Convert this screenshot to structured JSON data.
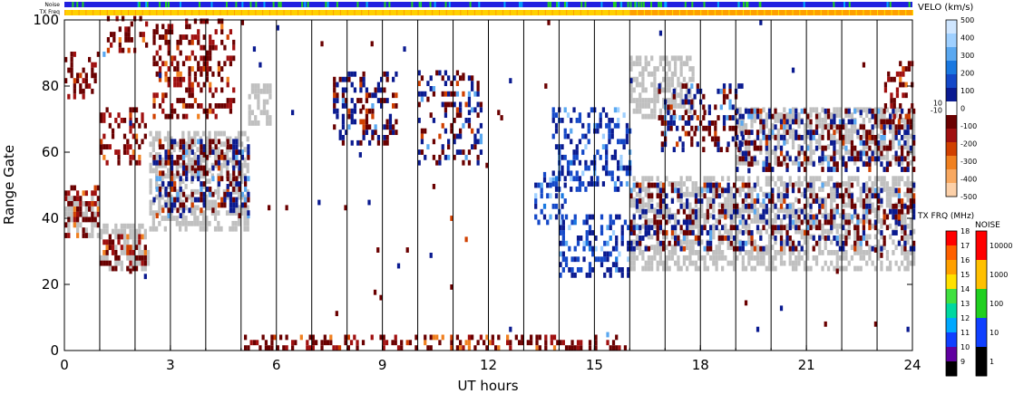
{
  "chart_data": {
    "type": "heatmap",
    "xlabel": "UT hours",
    "ylabel": "Range Gate",
    "xlim": [
      0,
      24
    ],
    "ylim": [
      0,
      100
    ],
    "x_ticks": [
      "0",
      "3",
      "6",
      "9",
      "12",
      "15",
      "18",
      "21",
      "24"
    ],
    "y_ticks": [
      "0",
      "20",
      "40",
      "60",
      "80",
      "100"
    ],
    "vertical_lines_ut": [
      1,
      2,
      3,
      4,
      5,
      6,
      7,
      8,
      9,
      10,
      11,
      12,
      13,
      14,
      15,
      16,
      17,
      18,
      19,
      20,
      21,
      22,
      23
    ],
    "bars": {
      "noise_label": "Noise",
      "txfreq_label": "TX Freq",
      "txfreq_change_ut": 16
    },
    "velocity_scale": {
      "title": "VELO (km/s)",
      "labels": [
        "500",
        "400",
        "300",
        "200",
        "100",
        "0",
        "-100",
        "-200",
        "-300",
        "-400",
        "-500"
      ],
      "side_labels": [
        "10",
        "-10"
      ],
      "colors_top_to_bottom": [
        "#cfe6ff",
        "#9fd0ff",
        "#5aa8f0",
        "#1a78e0",
        "#1448c8",
        "#0a1a90",
        "#ffffff",
        "#6a0000",
        "#a01010",
        "#d04000",
        "#f08020",
        "#f8a860",
        "#fcd0a8"
      ]
    },
    "txfreq_scale": {
      "title": "TX FRQ (MHz)",
      "labels": [
        "18",
        "17",
        "16",
        "15",
        "14",
        "13",
        "12",
        "11",
        "10",
        "9"
      ],
      "colors_top_to_bottom": [
        "#ff0000",
        "#ff6000",
        "#ffa000",
        "#ffe000",
        "#40e040",
        "#00d8a0",
        "#00a8ff",
        "#1040ff",
        "#6000a0",
        "#000000"
      ]
    },
    "noise_scale": {
      "title": "NOISE",
      "labels": [
        "10000",
        "1000",
        "100",
        "10",
        "1"
      ],
      "colors_top_to_bottom": [
        "#ff0000",
        "#ffc000",
        "#20d020",
        "#1040ff",
        "#000000"
      ]
    },
    "colors": {
      "ground_scatter": "#c0c0c0",
      "toward": "#0a1a90",
      "away": "#6a0000",
      "noise_bar": "#2020e0",
      "txfreq_early": "#ffd000",
      "txfreq_late": "#ffa000"
    },
    "regions": [
      {
        "kind": "ground",
        "t0": 0.0,
        "t1": 1.0,
        "g0": 34,
        "g1": 48
      },
      {
        "kind": "ground",
        "t0": 1.0,
        "t1": 2.4,
        "g0": 24,
        "g1": 38
      },
      {
        "kind": "ground",
        "t0": 2.4,
        "t1": 5.2,
        "g0": 36,
        "g1": 66
      },
      {
        "kind": "ground",
        "t0": 5.2,
        "t1": 5.8,
        "g0": 68,
        "g1": 80
      },
      {
        "kind": "ground",
        "t0": 16.0,
        "t1": 24.0,
        "g0": 24,
        "g1": 52
      },
      {
        "kind": "ground",
        "t0": 16.0,
        "t1": 17.8,
        "g0": 70,
        "g1": 88
      },
      {
        "kind": "ground",
        "t0": 19.0,
        "t1": 24.0,
        "g0": 56,
        "g1": 72
      },
      {
        "kind": "away",
        "t0": 0.0,
        "t1": 1.0,
        "g0": 76,
        "g1": 90
      },
      {
        "kind": "away",
        "t0": 0.0,
        "t1": 1.0,
        "g0": 34,
        "g1": 50
      },
      {
        "kind": "away",
        "t0": 1.0,
        "t1": 2.3,
        "g0": 24,
        "g1": 34
      },
      {
        "kind": "away",
        "t0": 1.0,
        "t1": 2.3,
        "g0": 56,
        "g1": 72
      },
      {
        "kind": "away",
        "t0": 1.2,
        "t1": 2.3,
        "g0": 90,
        "g1": 100
      },
      {
        "kind": "away",
        "t0": 2.5,
        "t1": 4.8,
        "g0": 70,
        "g1": 100
      },
      {
        "kind": "mixed",
        "t0": 2.5,
        "t1": 5.2,
        "g0": 40,
        "g1": 64
      },
      {
        "kind": "mixed",
        "t0": 7.6,
        "t1": 9.4,
        "g0": 62,
        "g1": 84
      },
      {
        "kind": "mixed",
        "t0": 10.0,
        "t1": 11.8,
        "g0": 56,
        "g1": 84
      },
      {
        "kind": "toward",
        "t0": 13.3,
        "t1": 14.2,
        "g0": 38,
        "g1": 54
      },
      {
        "kind": "toward",
        "t0": 14.0,
        "t1": 16.0,
        "g0": 22,
        "g1": 40
      },
      {
        "kind": "toward",
        "t0": 13.8,
        "t1": 16.0,
        "g0": 48,
        "g1": 72
      },
      {
        "kind": "mixed",
        "t0": 16.8,
        "t1": 19.2,
        "g0": 60,
        "g1": 80
      },
      {
        "kind": "mixed",
        "t0": 19.0,
        "t1": 24.0,
        "g0": 54,
        "g1": 72
      },
      {
        "kind": "mixed",
        "t0": 16.0,
        "t1": 24.0,
        "g0": 30,
        "g1": 50
      },
      {
        "kind": "away",
        "t0": 23.2,
        "t1": 24.0,
        "g0": 70,
        "g1": 86
      },
      {
        "kind": "away",
        "t0": 5.0,
        "t1": 16.0,
        "g0": 0,
        "g1": 4
      },
      {
        "kind": "mixed",
        "t0": 0.0,
        "t1": 24.0,
        "g0": 4,
        "g1": 100,
        "sparse": true
      }
    ]
  }
}
